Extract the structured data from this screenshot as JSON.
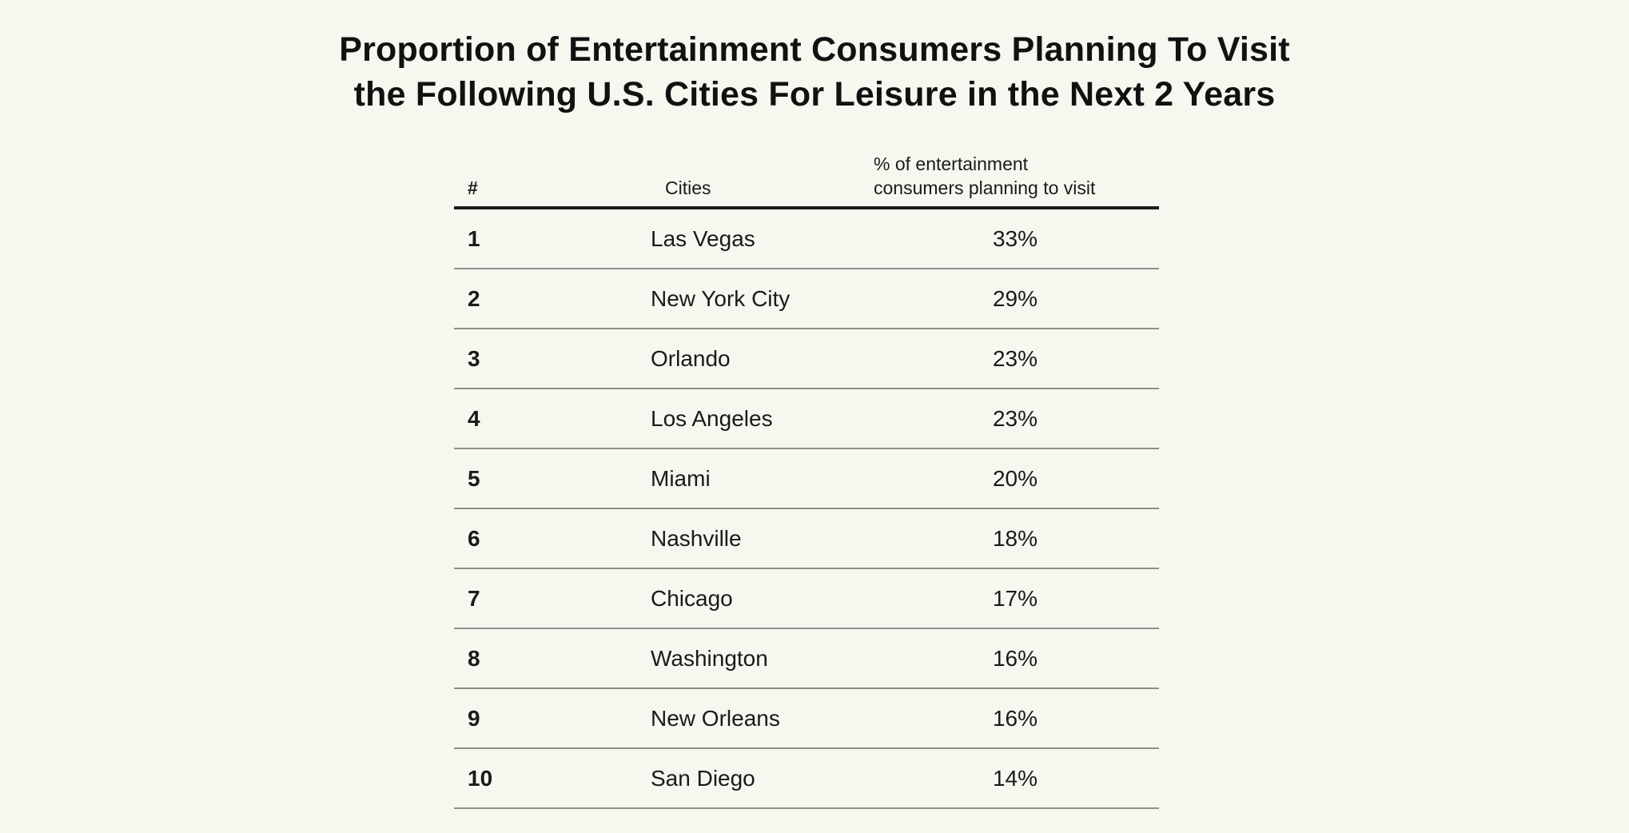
{
  "title": {
    "line1": "Proportion of Entertainment Consumers Planning To Visit",
    "line2": "the Following U.S. Cities For Leisure in the Next 2 Years"
  },
  "table": {
    "headers": {
      "rank": "#",
      "city": "Cities",
      "percent_line1": "% of entertainment",
      "percent_line2": "consumers planning to visit"
    },
    "rows": [
      {
        "rank": "1",
        "city": "Las Vegas",
        "percent": "33%"
      },
      {
        "rank": "2",
        "city": "New York City",
        "percent": "29%"
      },
      {
        "rank": "3",
        "city": "Orlando",
        "percent": "23%"
      },
      {
        "rank": "4",
        "city": "Los Angeles",
        "percent": "23%"
      },
      {
        "rank": "5",
        "city": "Miami",
        "percent": "20%"
      },
      {
        "rank": "6",
        "city": "Nashville",
        "percent": "18%"
      },
      {
        "rank": "7",
        "city": "Chicago",
        "percent": "17%"
      },
      {
        "rank": "8",
        "city": "Washington",
        "percent": "16%"
      },
      {
        "rank": "9",
        "city": "New Orleans",
        "percent": "16%"
      },
      {
        "rank": "10",
        "city": "San Diego",
        "percent": "14%"
      }
    ]
  },
  "colors": {
    "background": "#f7f6ef",
    "text": "#1a1a1a",
    "header_rule": "#1c1c1c",
    "row_rule": "#8f8f8a"
  }
}
